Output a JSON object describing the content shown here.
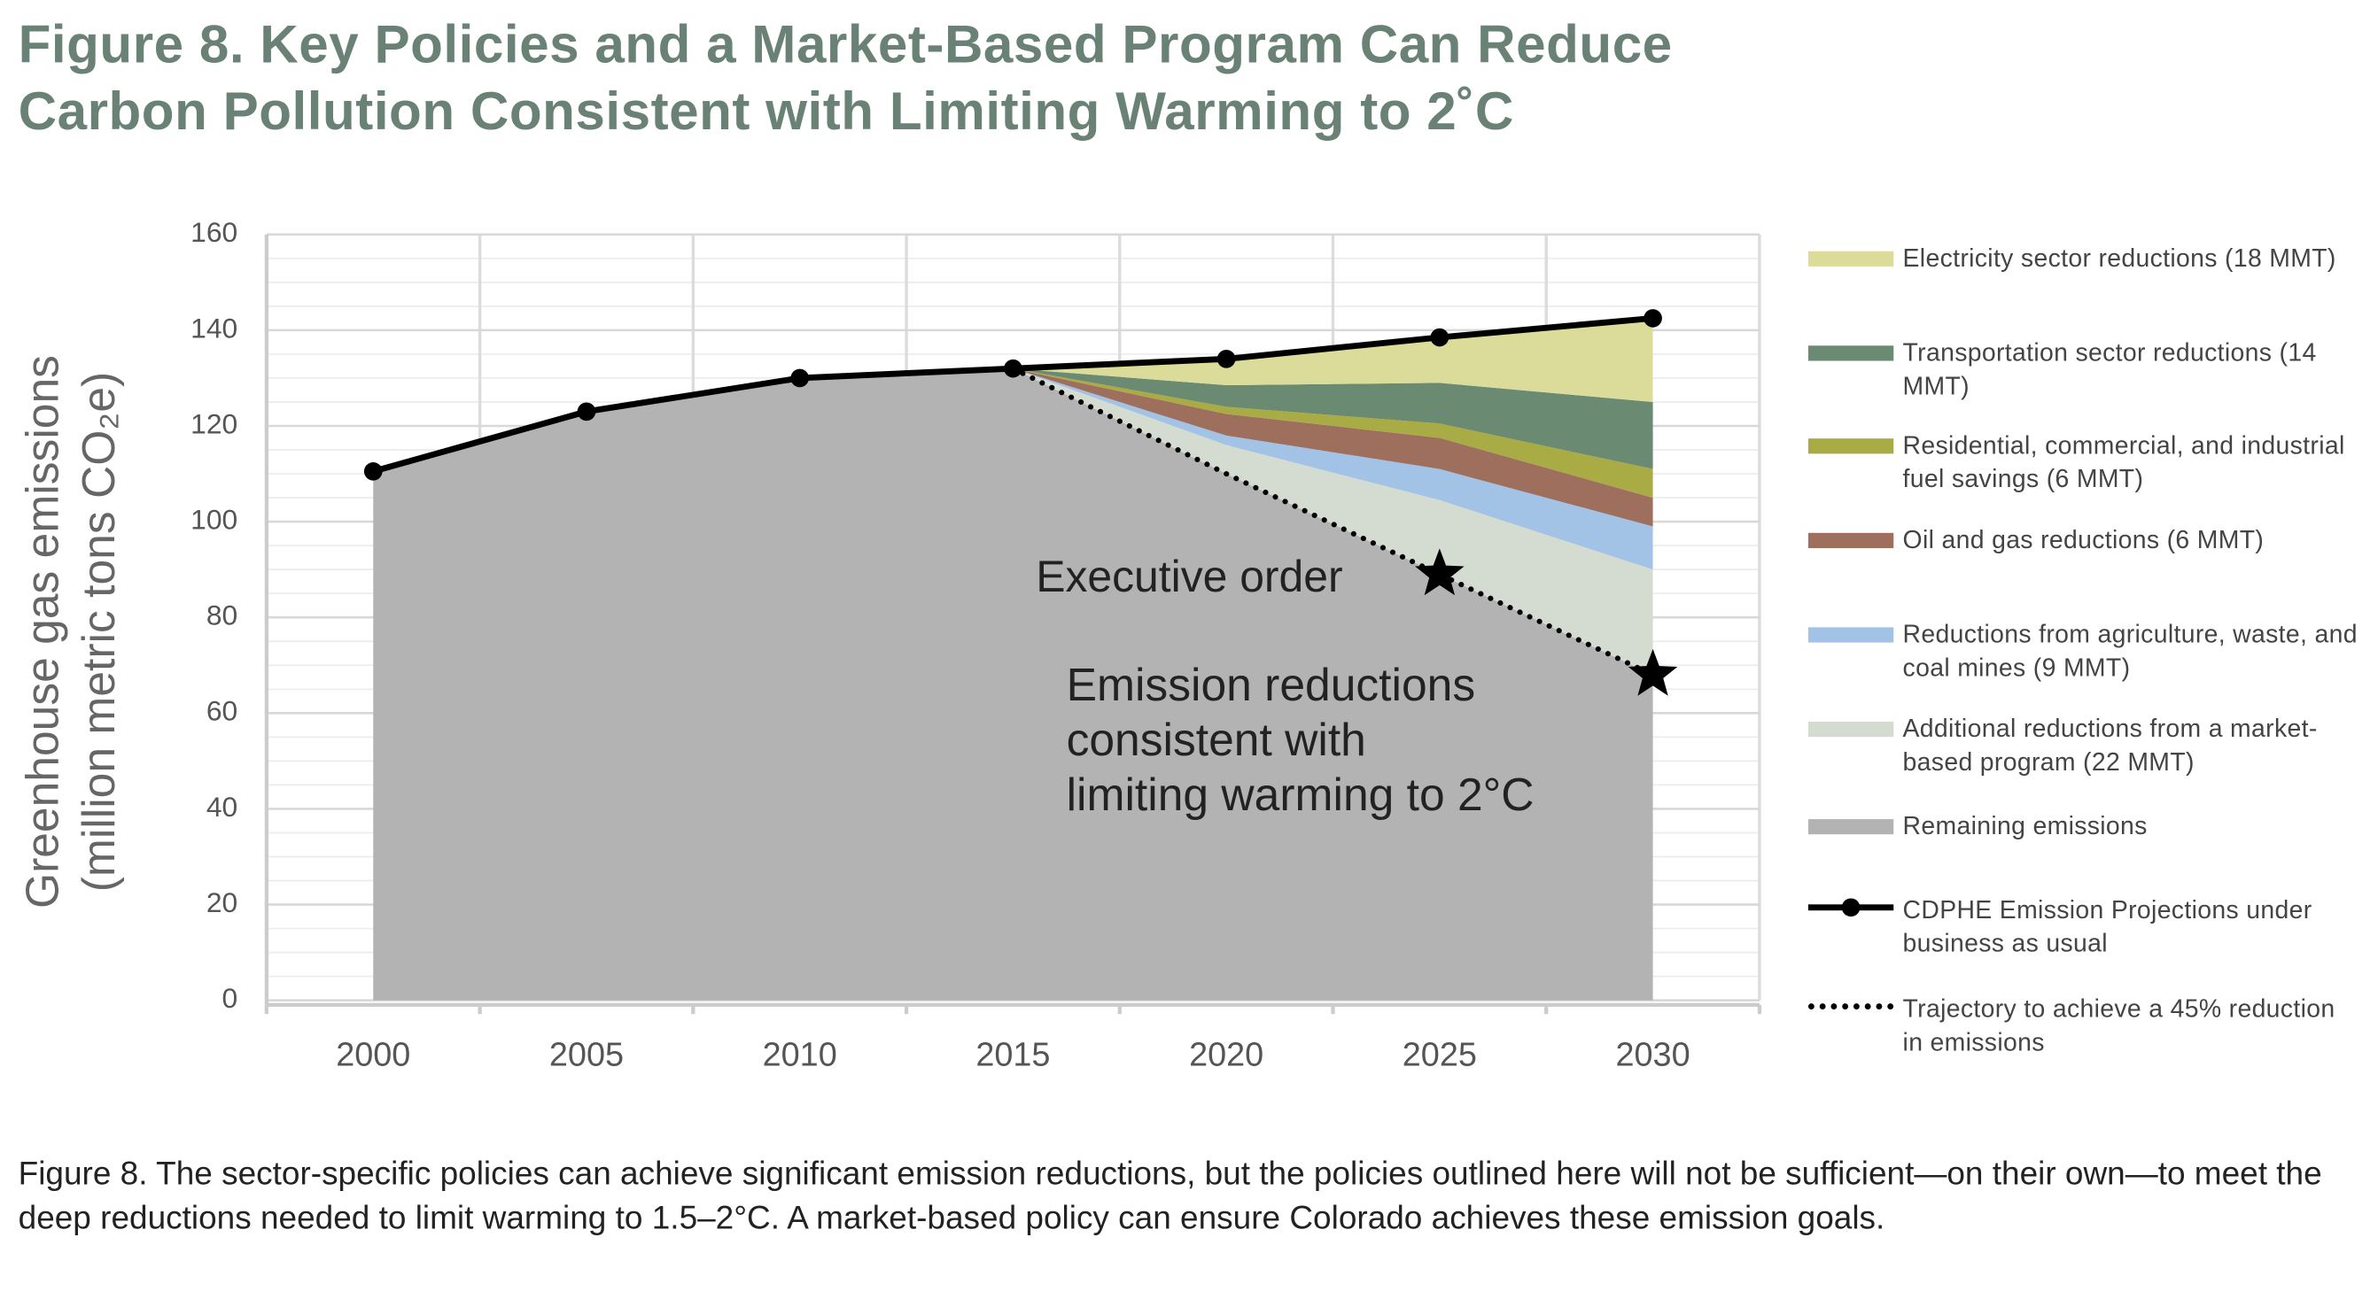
{
  "chart_data": {
    "type": "stacked_area",
    "title": "Figure 8. Key Policies and a Market-Based Program Can Reduce Carbon Pollution Consistent with Limiting Warming to 2˚C",
    "y_label": [
      "Greenhouse gas emissions",
      "(million metric tons CO₂e)"
    ],
    "categories": [
      "2000",
      "2005",
      "2010",
      "2015",
      "2020",
      "2025",
      "2030"
    ],
    "ylim": [
      0,
      160
    ],
    "yticks": [
      0,
      20,
      40,
      60,
      80,
      100,
      120,
      140,
      160
    ],
    "grid": true,
    "series": [
      {
        "name": "Electricity sector reductions (18 MMT)",
        "color": "#dcdc9a",
        "type": "area",
        "values": [
          0,
          0,
          0,
          0,
          5.5,
          9.5,
          17.5
        ]
      },
      {
        "name": "Transportation sector reductions (14 MMT)",
        "color": "#6b8a72",
        "type": "area",
        "values": [
          0,
          0,
          0,
          0,
          4.5,
          8.5,
          14
        ]
      },
      {
        "name": "Residential, commercial, and industrial fuel savings (6 MMT)",
        "color": "#a9ab45",
        "type": "area",
        "values": [
          0,
          0,
          0,
          0,
          1.5,
          3,
          6
        ]
      },
      {
        "name": "Oil and gas reductions (6 MMT)",
        "color": "#9e6f5c",
        "type": "area",
        "values": [
          0,
          0,
          0,
          0,
          4.5,
          6.5,
          6
        ]
      },
      {
        "name": "Reductions from agriculture, waste, and coal mines (9 MMT)",
        "color": "#a3c3e6",
        "type": "area",
        "values": [
          0,
          0,
          0,
          0,
          2,
          6.5,
          9
        ]
      },
      {
        "name": "Additional reductions from a market-based program (22 MMT)",
        "color": "#d4dcd2",
        "type": "area",
        "values": [
          0,
          0,
          0,
          0,
          6,
          15.5,
          22
        ]
      },
      {
        "name": "Remaining emissions",
        "color": "#b3b3b3",
        "type": "area",
        "values": [
          110.5,
          123,
          130,
          132,
          110,
          89,
          68
        ]
      },
      {
        "name": "CDPHE Emission Projections under business as usual",
        "color": "#000000",
        "type": "line",
        "style": "solid",
        "values": [
          110.5,
          123,
          130,
          132,
          134,
          138.5,
          142.5
        ]
      },
      {
        "name": "Trajectory to achieve a 45% reduction in emissions",
        "color": "#000000",
        "type": "line",
        "style": "dotted",
        "values": [
          null,
          null,
          null,
          132,
          110,
          89,
          68
        ]
      }
    ],
    "annotations": [
      {
        "lines": [
          "Executive order"
        ]
      },
      {
        "lines": [
          "Emission reductions",
          "consistent with",
          "limiting warming to 2°C"
        ]
      }
    ],
    "caption": "Figure 8. The sector-specific policies can achieve significant emission reductions, but the policies outlined here will not be sufficient—on their own—to meet the deep reductions needed to limit warming to 1.5–2°C. A market-based policy can ensure Colorado achieves these emission goals."
  }
}
